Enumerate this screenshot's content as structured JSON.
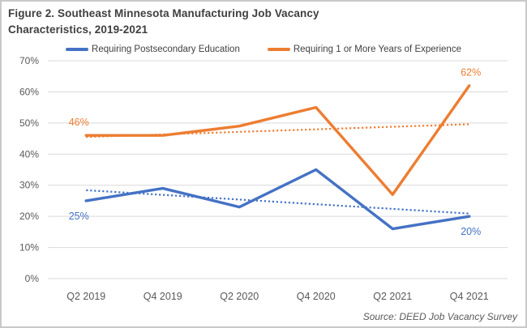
{
  "figure": {
    "title_line1": "Figure 2. Southeast Minnesota Manufacturing Job Vacancy",
    "title_line2": "Characteristics, 2019-2021",
    "source": "Source: DEED Job Vacancy Survey"
  },
  "colors": {
    "blue": "#4472C4",
    "orange": "#ED7D31",
    "grid": "#D9D9D9",
    "axis_text": "#595959",
    "title_text": "#3F3F3F",
    "border": "#C9C9C9"
  },
  "chart_data": {
    "type": "line",
    "title": "Figure 2. Southeast Minnesota Manufacturing Job Vacancy Characteristics, 2019-2021",
    "categories": [
      "Q2 2019",
      "Q4 2019",
      "Q2 2020",
      "Q4 2020",
      "Q2 2021",
      "Q4 2021"
    ],
    "series": [
      {
        "name": "Requiring Postsecondary Education",
        "color_key": "blue",
        "values": [
          25,
          29,
          23,
          35,
          16,
          20
        ],
        "trendline": {
          "start": 28.4,
          "end": 20.9
        },
        "point_labels": [
          {
            "index": 0,
            "text": "25%",
            "position": "below"
          },
          {
            "index": 5,
            "text": "20%",
            "position": "below"
          }
        ]
      },
      {
        "name": "Requiring 1 or More Years of Experience",
        "color_key": "orange",
        "values": [
          46,
          46,
          49,
          55,
          27,
          62
        ],
        "trendline": {
          "start": 45.5,
          "end": 49.6
        },
        "point_labels": [
          {
            "index": 0,
            "text": "46%",
            "position": "above"
          },
          {
            "index": 5,
            "text": "62%",
            "position": "above"
          }
        ]
      }
    ],
    "ylim": [
      0,
      70
    ],
    "ytick_step": 10,
    "ytick_labels": [
      "0%",
      "10%",
      "20%",
      "30%",
      "40%",
      "50%",
      "60%",
      "70%"
    ],
    "grid": true,
    "legend_position": "top",
    "xlabel": "",
    "ylabel": ""
  }
}
